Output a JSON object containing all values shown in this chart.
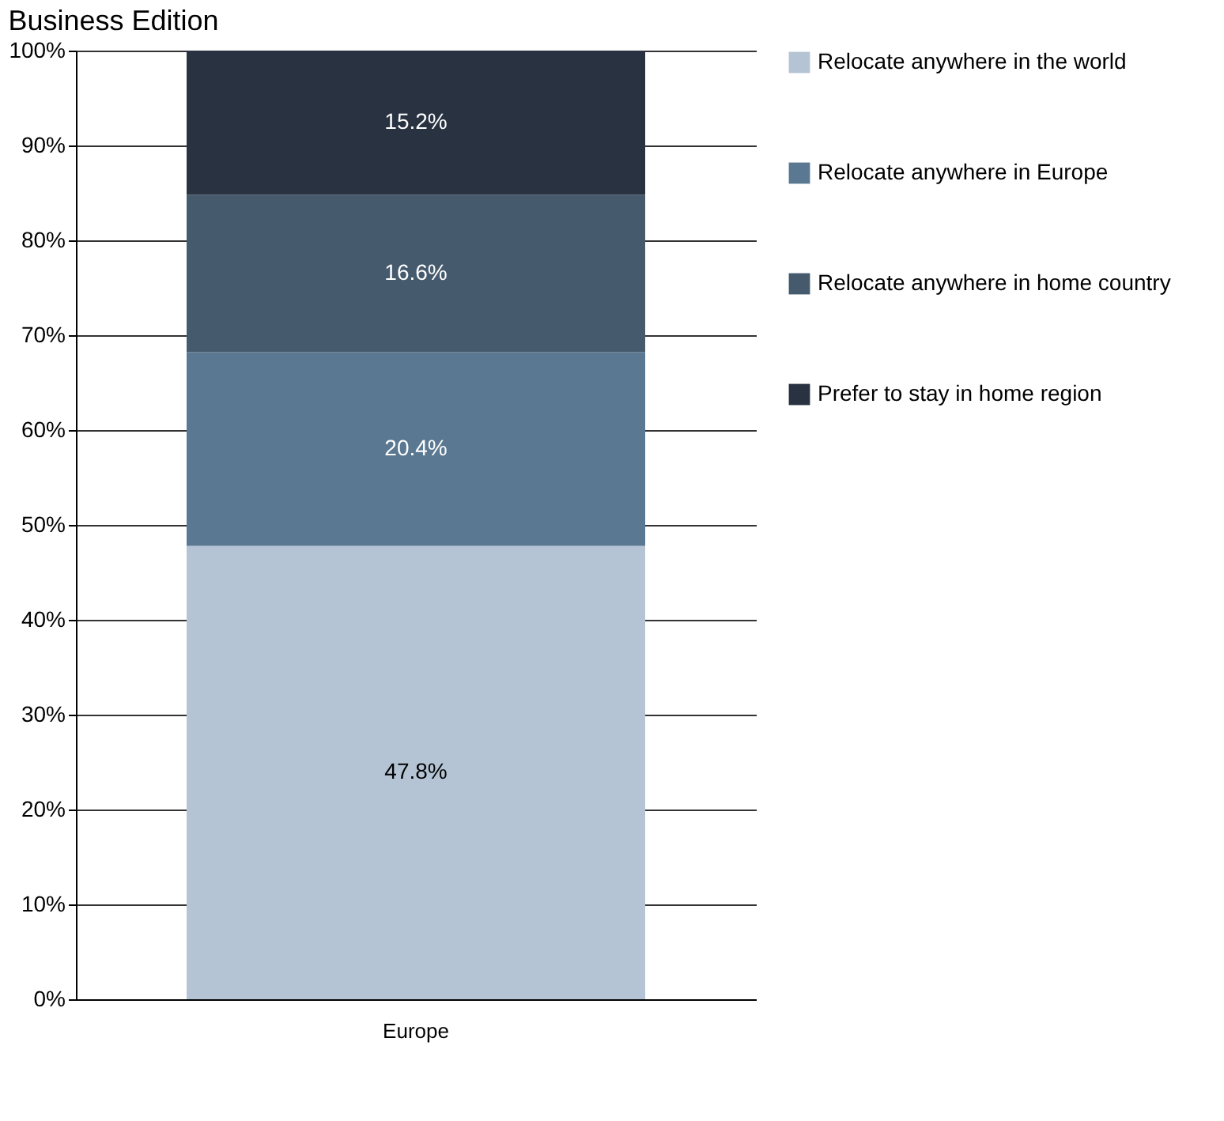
{
  "chart_data": {
    "type": "bar",
    "title": "Business Edition",
    "stacked": true,
    "categories": [
      "Europe"
    ],
    "series": [
      {
        "name": "Relocate anywhere in the world",
        "color": "#b4c4d4",
        "values": [
          47.8
        ],
        "value_labels": [
          "47.8%"
        ]
      },
      {
        "name": "Relocate anywhere in Europe",
        "color": "#5a7891",
        "values": [
          20.4
        ],
        "value_labels": [
          "20.4%"
        ]
      },
      {
        "name": "Relocate anywhere in home country",
        "color": "#465a6e",
        "values": [
          16.6
        ],
        "value_labels": [
          "16.6%"
        ]
      },
      {
        "name": "Prefer to stay in home region",
        "color": "#283241",
        "values": [
          15.2
        ],
        "value_labels": [
          "15.2%"
        ]
      }
    ],
    "ylim": [
      0,
      100
    ],
    "yticks": [
      {
        "value": 0,
        "label": "0%"
      },
      {
        "value": 10,
        "label": "10%"
      },
      {
        "value": 20,
        "label": "20%"
      },
      {
        "value": 30,
        "label": "30%"
      },
      {
        "value": 40,
        "label": "40%"
      },
      {
        "value": 50,
        "label": "50%"
      },
      {
        "value": 60,
        "label": "60%"
      },
      {
        "value": 70,
        "label": "70%"
      },
      {
        "value": 80,
        "label": "80%"
      },
      {
        "value": 90,
        "label": "90%"
      },
      {
        "value": 100,
        "label": "100%"
      }
    ],
    "grid": "y",
    "legend": "right"
  }
}
